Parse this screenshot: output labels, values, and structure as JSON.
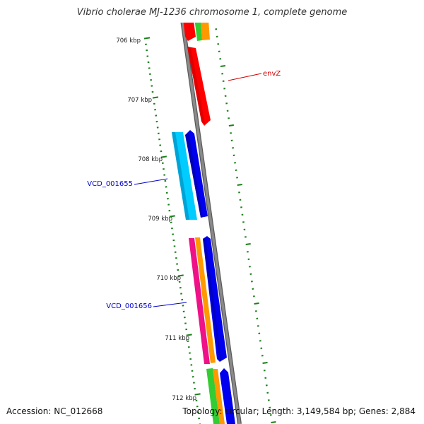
{
  "title": "Vibrio cholerae MJ-1236 chromosome 1, complete genome",
  "footer": {
    "accession": "Accession: NC_012668",
    "summary": "Topology: circular; Length: 3,149,584 bp; Genes: 2,884"
  },
  "ticks": [
    {
      "label": "706 kbp"
    },
    {
      "label": "707 kbp"
    },
    {
      "label": "708 kbp"
    },
    {
      "label": "709 kbp"
    },
    {
      "label": "710 kbp"
    },
    {
      "label": "711 kbp"
    },
    {
      "label": "712 kbp"
    }
  ],
  "gene_labels": [
    {
      "name": "envZ",
      "color": "#cc0000"
    },
    {
      "name": "VCD_001655",
      "color": "#0000cc"
    },
    {
      "name": "VCD_001656",
      "color": "#0000cc"
    }
  ],
  "feature_colors": {
    "red": "#ff0000",
    "blue": "#0000ee",
    "cyan": "#00ccff",
    "orange": "#ff9900",
    "green": "#33cc33",
    "pink": "#ee1188",
    "backbone": "#808080",
    "tick_green": "#1a801a"
  }
}
